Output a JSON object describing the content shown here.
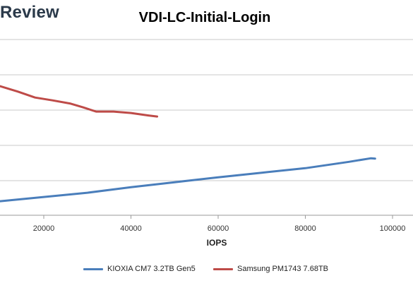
{
  "brand": {
    "text": "Review"
  },
  "chart_data": {
    "type": "line",
    "title": "VDI-LC-Initial-Login",
    "xlabel": "IOPS",
    "ylabel": "",
    "xlim": [
      10000,
      102000
    ],
    "xticks": [
      20000,
      40000,
      60000,
      80000,
      100000
    ],
    "grid": true,
    "legend_position": "bottom",
    "series": [
      {
        "name": "KIOXIA CM7 3.2TB Gen5",
        "color": "#4a7ebb",
        "points": [
          [
            10000,
            0.4
          ],
          [
            20000,
            0.52
          ],
          [
            30000,
            0.64
          ],
          [
            40000,
            0.8
          ],
          [
            50000,
            0.94
          ],
          [
            60000,
            1.08
          ],
          [
            70000,
            1.21
          ],
          [
            80000,
            1.34
          ],
          [
            90000,
            1.52
          ],
          [
            95000,
            1.62
          ],
          [
            96000,
            1.61
          ]
        ]
      },
      {
        "name": "Samsung PM1743 7.68TB",
        "color": "#be4b48",
        "points": [
          [
            10000,
            3.67
          ],
          [
            14000,
            3.52
          ],
          [
            18000,
            3.35
          ],
          [
            22000,
            3.27
          ],
          [
            26000,
            3.18
          ],
          [
            29000,
            3.07
          ],
          [
            32000,
            2.95
          ],
          [
            36000,
            2.95
          ],
          [
            40000,
            2.91
          ],
          [
            44000,
            2.84
          ],
          [
            46000,
            2.81
          ]
        ]
      }
    ]
  }
}
